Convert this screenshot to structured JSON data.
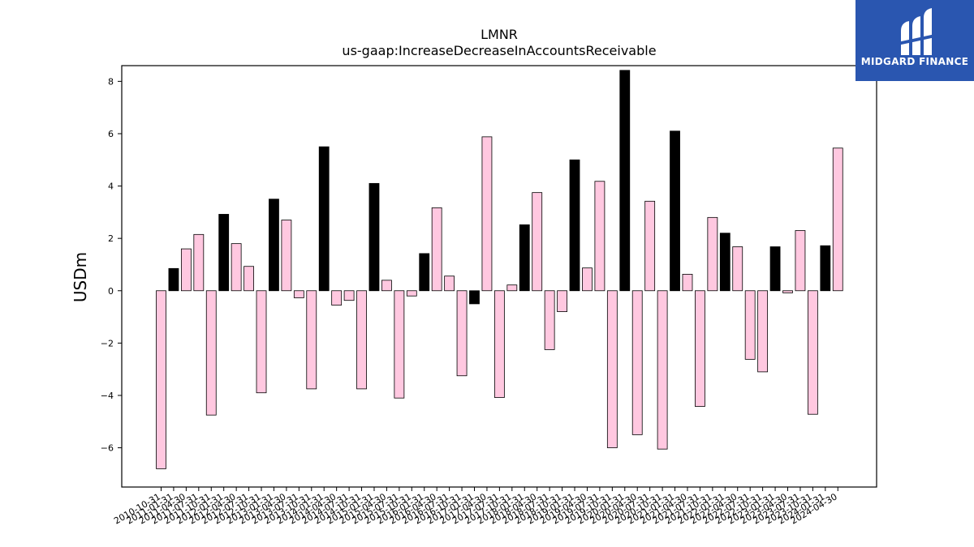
{
  "brand": {
    "name": "MIDGARD FINANCE",
    "bg_color": "#2a56b0"
  },
  "chart_data": {
    "type": "bar",
    "title": "LMNR",
    "subtitle": "us-gaap:IncreaseDecreaseInAccountsReceivable",
    "ylabel": "USDm",
    "xlabel": "",
    "ylim": [
      -7.5,
      8.6
    ],
    "yticks": [
      -6,
      -4,
      -2,
      0,
      2,
      4,
      6,
      8
    ],
    "grid": false,
    "colors": {
      "annual": "#000000",
      "quarterly": "#ffc8e0"
    },
    "categories": [
      "2010-10-31",
      "2011-01-31",
      "2011-04-30",
      "2011-07-31",
      "2011-10-31",
      "2012-01-31",
      "2012-04-30",
      "2012-07-31",
      "2012-10-31",
      "2013-01-31",
      "2013-04-30",
      "2013-07-31",
      "2013-10-31",
      "2014-01-31",
      "2014-04-30",
      "2014-07-31",
      "2014-10-31",
      "2015-01-31",
      "2015-04-30",
      "2015-07-31",
      "2015-10-31",
      "2016-01-31",
      "2016-04-30",
      "2016-07-31",
      "2016-10-31",
      "2017-01-31",
      "2017-04-30",
      "2017-07-31",
      "2017-10-31",
      "2018-01-31",
      "2018-04-30",
      "2018-07-31",
      "2018-10-31",
      "2019-01-31",
      "2019-04-30",
      "2019-07-31",
      "2019-10-31",
      "2020-01-31",
      "2020-04-30",
      "2020-07-31",
      "2020-10-31",
      "2021-01-31",
      "2021-04-30",
      "2021-07-31",
      "2021-10-31",
      "2022-01-31",
      "2022-04-30",
      "2022-07-31",
      "2022-10-31",
      "2023-01-31",
      "2023-04-30",
      "2023-07-31",
      "2023-10-31",
      "2024-01-31",
      "2024-04-30"
    ],
    "values": [
      -6.8,
      0.85,
      1.6,
      2.15,
      -4.75,
      2.92,
      1.8,
      0.93,
      -3.9,
      3.5,
      2.7,
      -0.27,
      -3.75,
      5.5,
      -0.55,
      -0.37,
      -3.75,
      4.1,
      0.4,
      -4.1,
      -0.2,
      1.42,
      3.17,
      0.56,
      -3.25,
      -0.5,
      5.88,
      -4.08,
      0.22,
      2.52,
      3.75,
      -2.25,
      -0.8,
      5.0,
      0.87,
      4.18,
      -6.0,
      8.42,
      -5.5,
      3.42,
      -6.05,
      6.1,
      0.63,
      -4.42,
      2.8,
      2.2,
      1.68,
      -2.62,
      -3.1,
      1.68,
      -0.08,
      2.3,
      -4.72,
      1.72,
      5.45
    ],
    "annual_flags": [
      0,
      1,
      0,
      0,
      0,
      1,
      0,
      0,
      0,
      1,
      0,
      0,
      0,
      1,
      0,
      0,
      0,
      1,
      0,
      0,
      0,
      1,
      0,
      0,
      0,
      1,
      0,
      0,
      0,
      1,
      0,
      0,
      0,
      1,
      0,
      0,
      0,
      1,
      0,
      0,
      0,
      1,
      0,
      0,
      0,
      1,
      0,
      0,
      0,
      1,
      0,
      0,
      0,
      1,
      0
    ]
  }
}
